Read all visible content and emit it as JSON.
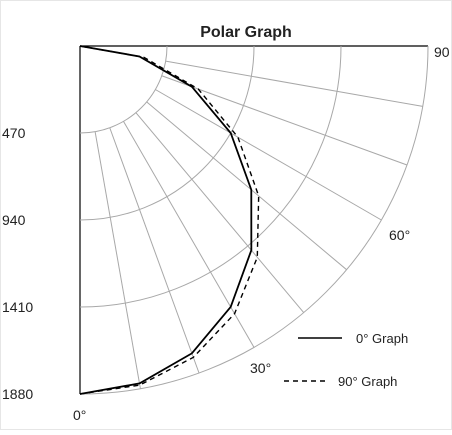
{
  "chart_data": {
    "type": "polar",
    "title": "Polar Graph",
    "radial_ticks": [
      "470",
      "940",
      "1410",
      "1880"
    ],
    "radial_range": [
      0,
      1880
    ],
    "angle_labels": [
      "0°",
      "30°",
      "60°",
      "90"
    ],
    "angle_range_deg": [
      0,
      90
    ],
    "grid": true,
    "legend_position": "bottom-right",
    "series": [
      {
        "name": "0° Graph",
        "style": "solid",
        "angles_deg": [
          0,
          10,
          20,
          30,
          40,
          50,
          60,
          70,
          80,
          90
        ],
        "values": [
          1880,
          1851,
          1767,
          1628,
          1440,
          1208,
          940,
          643,
          326,
          0
        ]
      },
      {
        "name": "90° Graph",
        "style": "dashed",
        "angles_deg": [
          0,
          10,
          20,
          30,
          40,
          50,
          60,
          70,
          80,
          90
        ],
        "values": [
          1880,
          1860,
          1790,
          1670,
          1490,
          1260,
          985,
          680,
          350,
          0
        ]
      }
    ]
  }
}
